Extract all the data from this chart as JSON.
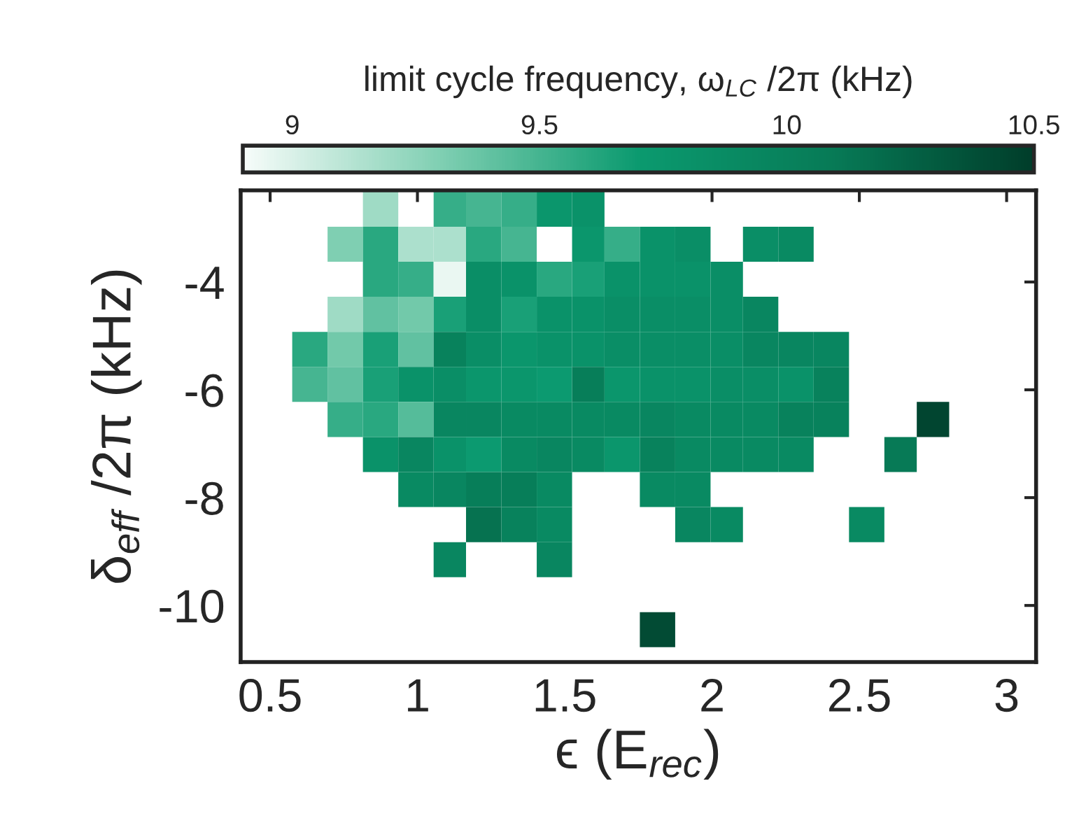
{
  "chart_data": {
    "type": "heatmap",
    "xlabel": "ϵ (E$_{rec}$)",
    "ylabel": "δ$_{eff}$ /2π (kHz)",
    "clabel": "limit cycle frequency, ω$_{LC}$ /2π (kHz)",
    "x": [
      0.63,
      0.75,
      0.87,
      0.99,
      1.11,
      1.22,
      1.34,
      1.46,
      1.58,
      1.69,
      1.81,
      1.93,
      2.05,
      2.16,
      2.28,
      2.4,
      2.52,
      2.64,
      2.75
    ],
    "y": [
      -2.65,
      -3.3,
      -3.95,
      -4.6,
      -5.25,
      -5.9,
      -6.55,
      -7.2,
      -7.85,
      -8.5,
      -9.15,
      -10.45
    ],
    "cells": [
      [
        null,
        null,
        9.2,
        null,
        9.55,
        9.5,
        9.55,
        9.75,
        9.8,
        null,
        null,
        null,
        null,
        null,
        null,
        null,
        null,
        null,
        null
      ],
      [
        null,
        9.3,
        9.6,
        9.15,
        9.15,
        9.6,
        9.5,
        null,
        9.75,
        9.55,
        9.8,
        9.85,
        null,
        9.85,
        9.9,
        null,
        null,
        null,
        null
      ],
      [
        null,
        null,
        9.6,
        9.55,
        8.95,
        9.85,
        9.8,
        9.6,
        9.65,
        9.8,
        9.8,
        9.8,
        9.85,
        null,
        null,
        null,
        null,
        null,
        null
      ],
      [
        null,
        9.2,
        9.4,
        9.35,
        9.65,
        9.85,
        9.65,
        9.8,
        9.8,
        9.85,
        9.85,
        9.85,
        9.85,
        9.95,
        null,
        null,
        null,
        null,
        null
      ],
      [
        9.6,
        9.35,
        9.65,
        9.4,
        10.0,
        9.85,
        9.75,
        9.8,
        9.8,
        9.85,
        9.85,
        9.85,
        9.85,
        9.95,
        9.95,
        9.95,
        null,
        null,
        null
      ],
      [
        9.5,
        9.4,
        9.65,
        9.8,
        9.85,
        9.75,
        9.75,
        9.7,
        10.05,
        9.75,
        9.8,
        9.8,
        9.85,
        9.85,
        9.8,
        10.0,
        null,
        null,
        null
      ],
      [
        null,
        9.55,
        9.6,
        9.45,
        9.95,
        9.95,
        9.9,
        9.9,
        9.9,
        9.9,
        9.95,
        9.9,
        9.9,
        9.9,
        10.0,
        10.0,
        null,
        null,
        10.45
      ],
      [
        null,
        null,
        9.8,
        9.95,
        9.8,
        9.7,
        9.9,
        9.95,
        9.9,
        9.75,
        10.0,
        9.9,
        9.9,
        9.9,
        9.9,
        null,
        null,
        10.1,
        null
      ],
      [
        null,
        null,
        null,
        9.9,
        9.95,
        10.05,
        10.05,
        9.9,
        null,
        null,
        9.9,
        9.9,
        null,
        null,
        null,
        null,
        null,
        null,
        null
      ],
      [
        null,
        null,
        null,
        null,
        null,
        10.15,
        10.0,
        9.9,
        null,
        null,
        null,
        9.95,
        9.9,
        null,
        null,
        null,
        9.9,
        null,
        null
      ],
      [
        null,
        null,
        null,
        null,
        9.95,
        null,
        null,
        9.95,
        null,
        null,
        null,
        null,
        null,
        null,
        null,
        null,
        null,
        null,
        null
      ],
      [
        null,
        null,
        null,
        null,
        null,
        null,
        null,
        null,
        null,
        null,
        10.4,
        null,
        null,
        null,
        null,
        null,
        null,
        null,
        null
      ]
    ],
    "xlim": [
      0.4,
      3.1
    ],
    "xticks": [
      0.5,
      1,
      1.5,
      2,
      2.5,
      3
    ],
    "ylim": [
      -11.05,
      -2.3
    ],
    "yticks": [
      -10,
      -8,
      -6,
      -4
    ],
    "clim": [
      8.9,
      10.5
    ],
    "cticks": [
      9,
      9.5,
      10,
      10.5
    ]
  }
}
